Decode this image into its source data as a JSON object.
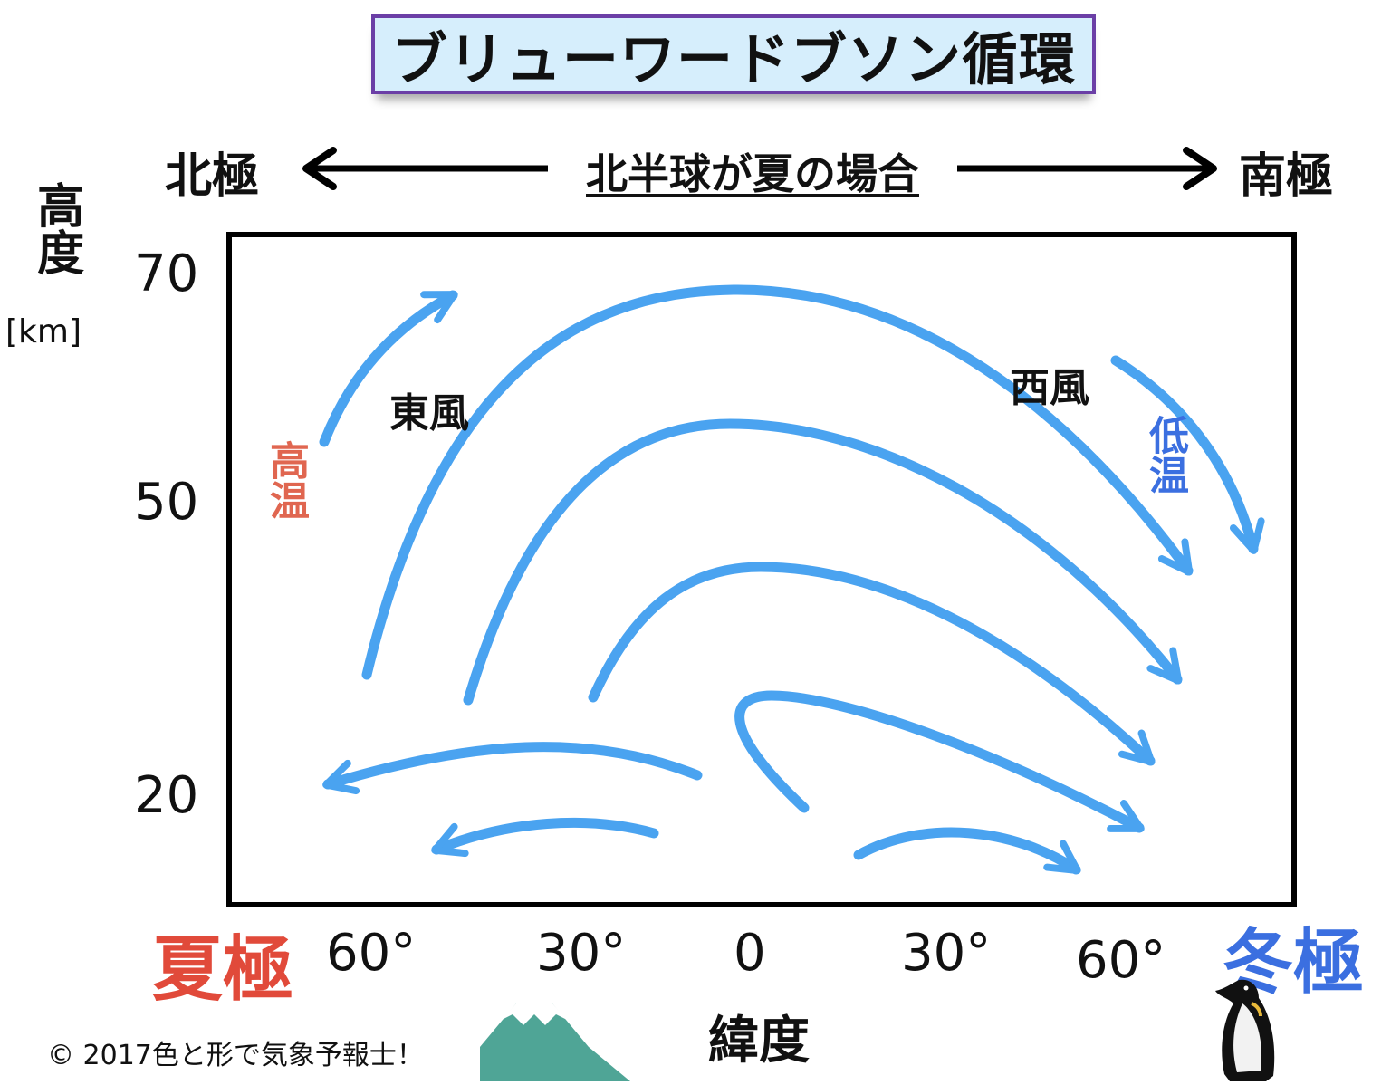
{
  "title": "ブリューワードブソン循環",
  "header": {
    "left_pole": "北極",
    "caption": "北半球が夏の場合",
    "right_pole": "南極"
  },
  "y_axis": {
    "label": "高度",
    "unit": "[km]",
    "ticks": [
      "70",
      "50",
      "20"
    ]
  },
  "x_axis": {
    "label": "緯度",
    "ticks": [
      "60°",
      "30°",
      "0",
      "30°",
      "60°"
    ]
  },
  "annotations": {
    "east_wind": "東風",
    "west_wind": "西風",
    "high_temp": "高温",
    "low_temp": "低温"
  },
  "poles": {
    "summer": "夏極",
    "winter": "冬極"
  },
  "credit": "© 2017色と形で気象予報士！",
  "colors": {
    "arrow": "#4aa3f0",
    "summer_pole": "#e14a3a",
    "winter_pole": "#3b6fe0",
    "high_temp": "#e06650",
    "low_temp": "#3b6fe0",
    "title_bg": "#d6eefc",
    "title_border": "#6b3fa6",
    "mountain": "#4fa596"
  },
  "icons": [
    "double-arrow-icon",
    "circulation-arrow-icon",
    "mount-fuji-icon",
    "penguin-icon"
  ]
}
